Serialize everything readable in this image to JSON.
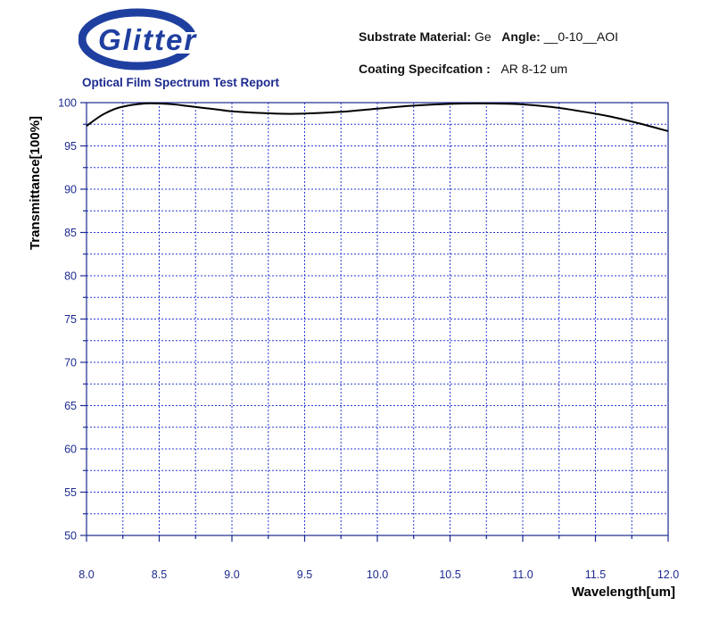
{
  "header": {
    "brand": "Glitter",
    "substrate_label": "Substrate Material:",
    "substrate_value": "Ge",
    "angle_label": "Angle:",
    "angle_value": "__0-10__AOI",
    "coating_label": "Coating Specifcation :",
    "coating_value": "AR 8-12 um",
    "report_title": "Optical Film Spectrum Test Report"
  },
  "colors": {
    "axis_blue": "#1c2a8f",
    "grid_blue": "#2a3bd0",
    "curve": "#000000",
    "logo_blue": "#1f3fa0"
  },
  "chart_data": {
    "type": "line",
    "title": "Optical Film Spectrum Test Report",
    "xlabel": "Wavelength[um]",
    "ylabel": "Transmittance[100%]",
    "xlim": [
      8.0,
      12.0
    ],
    "ylim": [
      50,
      100
    ],
    "x_ticks": [
      8.0,
      8.5,
      9.0,
      9.5,
      10.0,
      10.5,
      11.0,
      11.5,
      12.0
    ],
    "x_tick_labels": [
      "8.0",
      "8.5",
      "9.0",
      "9.5",
      "10.0",
      "10.5",
      "11.0",
      "11.5",
      "12.0"
    ],
    "y_ticks": [
      50,
      55,
      60,
      65,
      70,
      75,
      80,
      85,
      90,
      95,
      100
    ],
    "y_tick_labels": [
      "50",
      "55",
      "60",
      "65",
      "70",
      "75",
      "80",
      "85",
      "90",
      "95",
      "100"
    ],
    "grid": true,
    "series": [
      {
        "x": [
          8.0,
          8.1,
          8.2,
          8.3,
          8.4,
          8.5,
          8.6,
          8.7,
          8.8,
          8.9,
          9.0,
          9.2,
          9.4,
          9.6,
          9.8,
          10.0,
          10.2,
          10.4,
          10.6,
          10.8,
          11.0,
          11.2,
          11.4,
          11.6,
          11.8,
          12.0
        ],
        "y": [
          97.3,
          98.5,
          99.3,
          99.7,
          99.9,
          99.9,
          99.8,
          99.6,
          99.4,
          99.2,
          99.0,
          98.8,
          98.7,
          98.8,
          99.0,
          99.3,
          99.6,
          99.8,
          99.9,
          99.9,
          99.8,
          99.5,
          99.0,
          98.4,
          97.6,
          96.7
        ]
      }
    ]
  }
}
